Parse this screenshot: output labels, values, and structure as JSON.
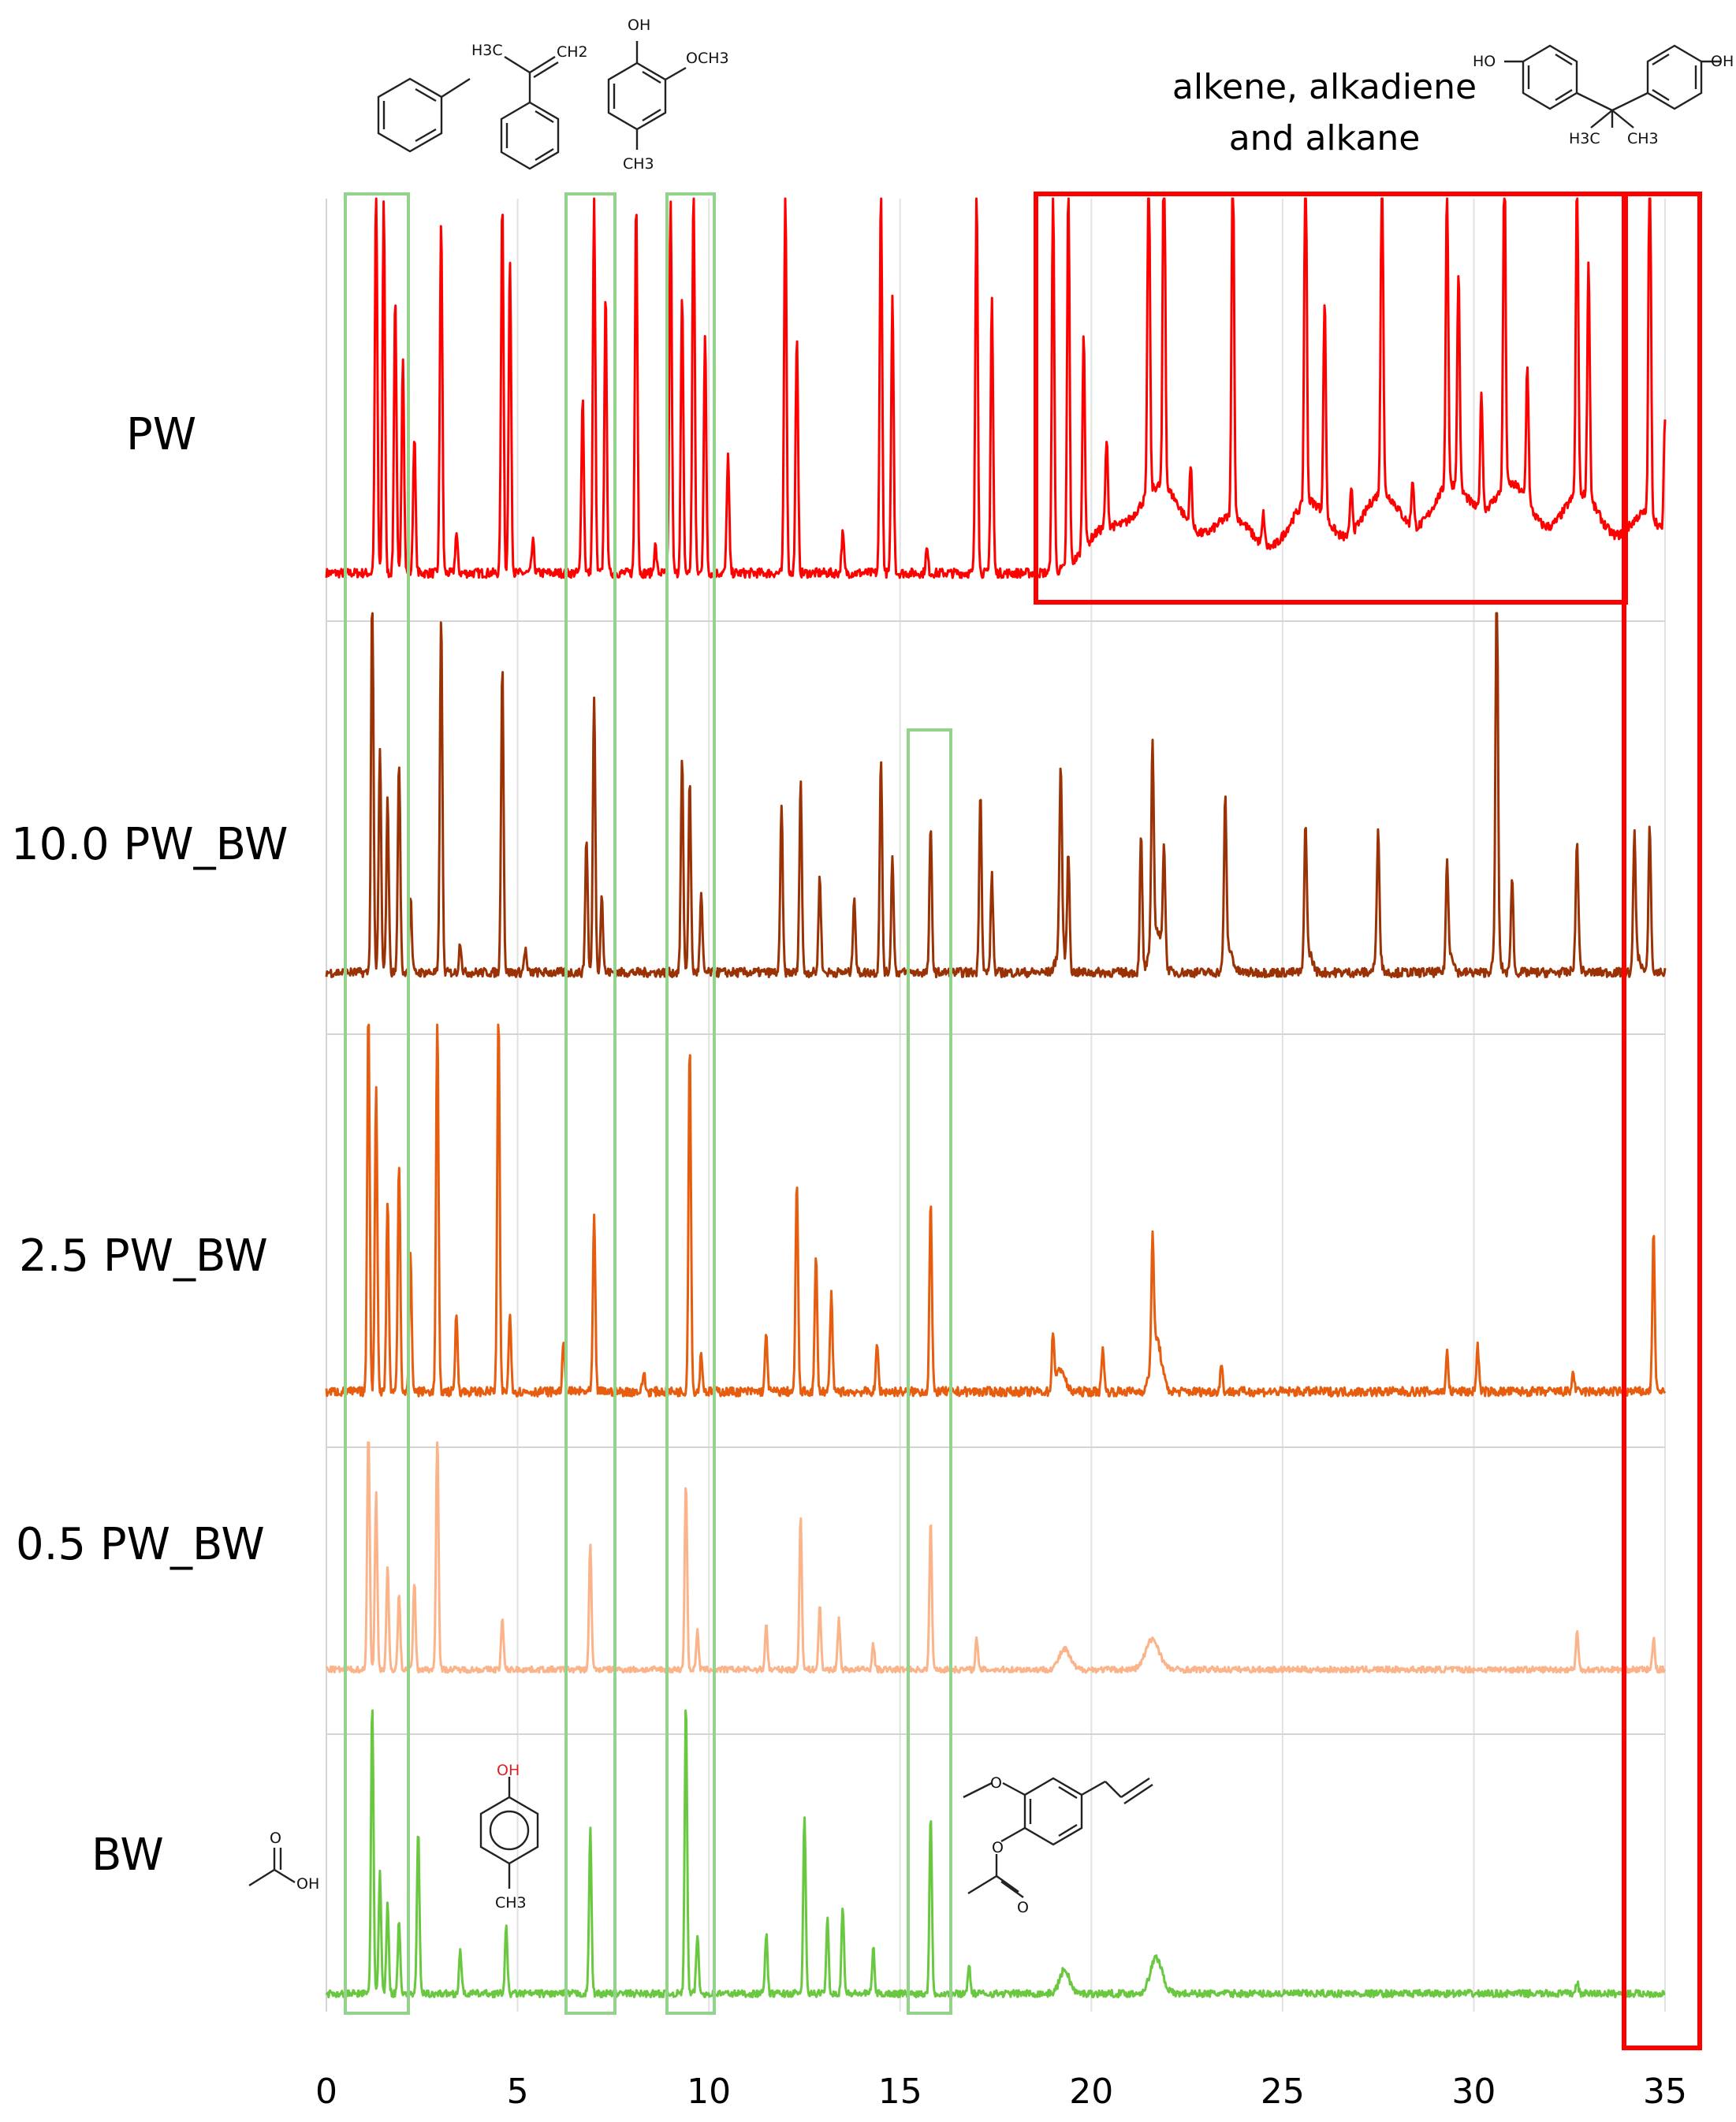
{
  "chart_data": {
    "type": "line",
    "title": "",
    "xlabel": "",
    "ylabel": "",
    "xlim": [
      0,
      35
    ],
    "x_ticks": [
      0,
      5,
      10,
      15,
      20,
      25,
      30,
      35
    ],
    "grid": true,
    "legend": "none",
    "series": [
      {
        "name": "PW",
        "color": "#ff0000",
        "baseline": 0.05,
        "peaks": [
          [
            1.3,
            1.0
          ],
          [
            1.5,
            0.95
          ],
          [
            1.8,
            0.7
          ],
          [
            2.0,
            0.55
          ],
          [
            2.3,
            0.35
          ],
          [
            3.0,
            0.9
          ],
          [
            3.4,
            0.1
          ],
          [
            4.6,
            0.95
          ],
          [
            4.8,
            0.8
          ],
          [
            5.4,
            0.08
          ],
          [
            6.7,
            0.45
          ],
          [
            7.0,
            0.95
          ],
          [
            7.3,
            0.7
          ],
          [
            8.1,
            0.95
          ],
          [
            8.6,
            0.07
          ],
          [
            9.0,
            0.95
          ],
          [
            9.3,
            0.7
          ],
          [
            9.6,
            0.98
          ],
          [
            9.9,
            0.6
          ],
          [
            10.5,
            0.3
          ],
          [
            12.0,
            0.98
          ],
          [
            12.3,
            0.6
          ],
          [
            13.5,
            0.1
          ],
          [
            14.5,
            0.98
          ],
          [
            14.8,
            0.7
          ],
          [
            15.7,
            0.06
          ],
          [
            17.0,
            0.98
          ],
          [
            17.4,
            0.7
          ],
          [
            19.0,
            0.98
          ],
          [
            19.4,
            0.98
          ],
          [
            19.8,
            0.55
          ],
          [
            20.4,
            0.22
          ],
          [
            21.5,
            0.88
          ],
          [
            21.9,
            0.98
          ],
          [
            22.6,
            0.15
          ],
          [
            23.7,
            0.96
          ],
          [
            24.5,
            0.08
          ],
          [
            25.6,
            0.96
          ],
          [
            26.1,
            0.55
          ],
          [
            26.8,
            0.12
          ],
          [
            27.6,
            0.88
          ],
          [
            28.4,
            0.12
          ],
          [
            29.3,
            0.78
          ],
          [
            29.6,
            0.55
          ],
          [
            30.2,
            0.3
          ],
          [
            30.8,
            0.86
          ],
          [
            31.4,
            0.35
          ],
          [
            32.7,
            0.82
          ],
          [
            33.0,
            0.6
          ],
          [
            34.6,
            0.98
          ],
          [
            35.0,
            0.3
          ]
        ],
        "humps": [
          [
            20.3,
            0.7,
            0.1
          ],
          [
            21.8,
            0.9,
            0.22
          ],
          [
            23.7,
            0.8,
            0.14
          ],
          [
            25.7,
            0.8,
            0.18
          ],
          [
            27.6,
            0.8,
            0.2
          ],
          [
            29.4,
            0.8,
            0.22
          ],
          [
            31.0,
            0.8,
            0.22
          ],
          [
            32.8,
            0.8,
            0.2
          ],
          [
            34.5,
            0.7,
            0.15
          ]
        ]
      },
      {
        "name": "10.0 PW_BW",
        "color": "#9a3206",
        "baseline": 0.07,
        "peaks": [
          [
            1.2,
            1.0
          ],
          [
            1.4,
            0.58
          ],
          [
            1.6,
            0.45
          ],
          [
            1.9,
            0.55
          ],
          [
            2.2,
            0.2
          ],
          [
            3.0,
            0.93
          ],
          [
            3.5,
            0.08
          ],
          [
            4.6,
            0.8
          ],
          [
            5.2,
            0.06
          ],
          [
            6.8,
            0.35
          ],
          [
            7.0,
            0.72
          ],
          [
            7.2,
            0.2
          ],
          [
            9.3,
            0.55
          ],
          [
            9.5,
            0.49
          ],
          [
            9.8,
            0.2
          ],
          [
            11.9,
            0.43
          ],
          [
            12.4,
            0.5
          ],
          [
            12.9,
            0.25
          ],
          [
            13.8,
            0.2
          ],
          [
            14.5,
            0.55
          ],
          [
            14.8,
            0.3
          ],
          [
            15.8,
            0.37
          ],
          [
            17.1,
            0.47
          ],
          [
            17.4,
            0.25
          ],
          [
            19.2,
            0.47
          ],
          [
            19.4,
            0.3
          ],
          [
            21.3,
            0.35
          ],
          [
            21.6,
            0.52
          ],
          [
            21.9,
            0.3
          ],
          [
            23.5,
            0.42
          ],
          [
            25.6,
            0.37
          ],
          [
            27.5,
            0.32
          ],
          [
            29.3,
            0.27
          ],
          [
            30.6,
            1.0
          ],
          [
            31.0,
            0.25
          ],
          [
            32.7,
            0.3
          ],
          [
            34.2,
            0.35
          ],
          [
            34.6,
            0.38
          ]
        ],
        "humps": [
          [
            19.2,
            0.15,
            0.07
          ],
          [
            21.7,
            0.2,
            0.11
          ],
          [
            23.6,
            0.14,
            0.06
          ],
          [
            25.7,
            0.12,
            0.05
          ],
          [
            27.5,
            0.11,
            0.05
          ],
          [
            29.4,
            0.1,
            0.05
          ],
          [
            30.6,
            0.12,
            0.05
          ],
          [
            32.7,
            0.1,
            0.04
          ],
          [
            34.3,
            0.1,
            0.04
          ]
        ]
      },
      {
        "name": "2.5 PW_BW",
        "color": "#e65d10",
        "baseline": 0.05,
        "peaks": [
          [
            1.1,
            1.0
          ],
          [
            1.3,
            0.8
          ],
          [
            1.6,
            0.5
          ],
          [
            1.9,
            0.6
          ],
          [
            2.2,
            0.35
          ],
          [
            2.9,
            0.98
          ],
          [
            3.4,
            0.2
          ],
          [
            4.5,
            0.98
          ],
          [
            4.8,
            0.2
          ],
          [
            6.2,
            0.12
          ],
          [
            7.0,
            0.45
          ],
          [
            8.3,
            0.05
          ],
          [
            9.5,
            0.9
          ],
          [
            9.8,
            0.1
          ],
          [
            11.5,
            0.15
          ],
          [
            12.3,
            0.55
          ],
          [
            12.8,
            0.35
          ],
          [
            13.2,
            0.25
          ],
          [
            14.4,
            0.12
          ],
          [
            15.8,
            0.49
          ],
          [
            19.0,
            0.15
          ],
          [
            20.3,
            0.12
          ],
          [
            21.6,
            0.3
          ],
          [
            23.4,
            0.07
          ],
          [
            29.3,
            0.1
          ],
          [
            30.1,
            0.12
          ],
          [
            32.6,
            0.05
          ],
          [
            34.7,
            0.41
          ]
        ],
        "humps": [
          [
            19.2,
            0.15,
            0.06
          ],
          [
            21.7,
            0.18,
            0.14
          ]
        ]
      },
      {
        "name": "0.5 PW_BW",
        "color": "#fbb38a",
        "baseline": 0.1,
        "peaks": [
          [
            1.1,
            1.0
          ],
          [
            1.3,
            0.7
          ],
          [
            1.6,
            0.4
          ],
          [
            1.9,
            0.3
          ],
          [
            2.3,
            0.35
          ],
          [
            2.9,
            0.98
          ],
          [
            4.6,
            0.2
          ],
          [
            6.9,
            0.5
          ],
          [
            9.4,
            0.75
          ],
          [
            9.7,
            0.15
          ],
          [
            11.5,
            0.18
          ],
          [
            12.4,
            0.62
          ],
          [
            12.9,
            0.25
          ],
          [
            13.4,
            0.2
          ],
          [
            14.3,
            0.1
          ],
          [
            15.8,
            0.59
          ],
          [
            17.0,
            0.12
          ],
          [
            32.7,
            0.15
          ],
          [
            34.7,
            0.12
          ]
        ],
        "humps": [
          [
            19.3,
            0.2,
            0.08
          ],
          [
            21.6,
            0.25,
            0.12
          ]
        ]
      },
      {
        "name": "BW",
        "color": "#6ac840",
        "baseline": 0.05,
        "peaks": [
          [
            1.2,
            1.0
          ],
          [
            1.4,
            0.4
          ],
          [
            1.6,
            0.3
          ],
          [
            1.9,
            0.25
          ],
          [
            2.4,
            0.55
          ],
          [
            3.5,
            0.15
          ],
          [
            4.7,
            0.22
          ],
          [
            6.9,
            0.55
          ],
          [
            9.4,
            0.98
          ],
          [
            9.7,
            0.2
          ],
          [
            11.5,
            0.2
          ],
          [
            12.5,
            0.6
          ],
          [
            13.1,
            0.25
          ],
          [
            13.5,
            0.3
          ],
          [
            14.3,
            0.15
          ],
          [
            15.8,
            0.6
          ],
          [
            16.8,
            0.1
          ],
          [
            32.7,
            0.04
          ]
        ],
        "humps": [
          [
            19.3,
            0.18,
            0.08
          ],
          [
            21.7,
            0.22,
            0.12
          ]
        ]
      }
    ]
  },
  "labels": {
    "pw": "PW",
    "pwbw10": "10.0 PW_BW",
    "pwbw25": "2.5 PW_BW",
    "pwbw05": "0.5 PW_BW",
    "bw": "BW",
    "alkene_line1": "alkene, alkadiene",
    "alkene_line2": "and alkane"
  },
  "chem": {
    "h3c": "H3C",
    "ch2": "CH2",
    "oh": "OH",
    "ho": "HO",
    "och3": "OCH3",
    "ch3": "CH3",
    "o": "O"
  },
  "highlight_colors": {
    "green": "#93d38c",
    "red": "#ff0000"
  }
}
